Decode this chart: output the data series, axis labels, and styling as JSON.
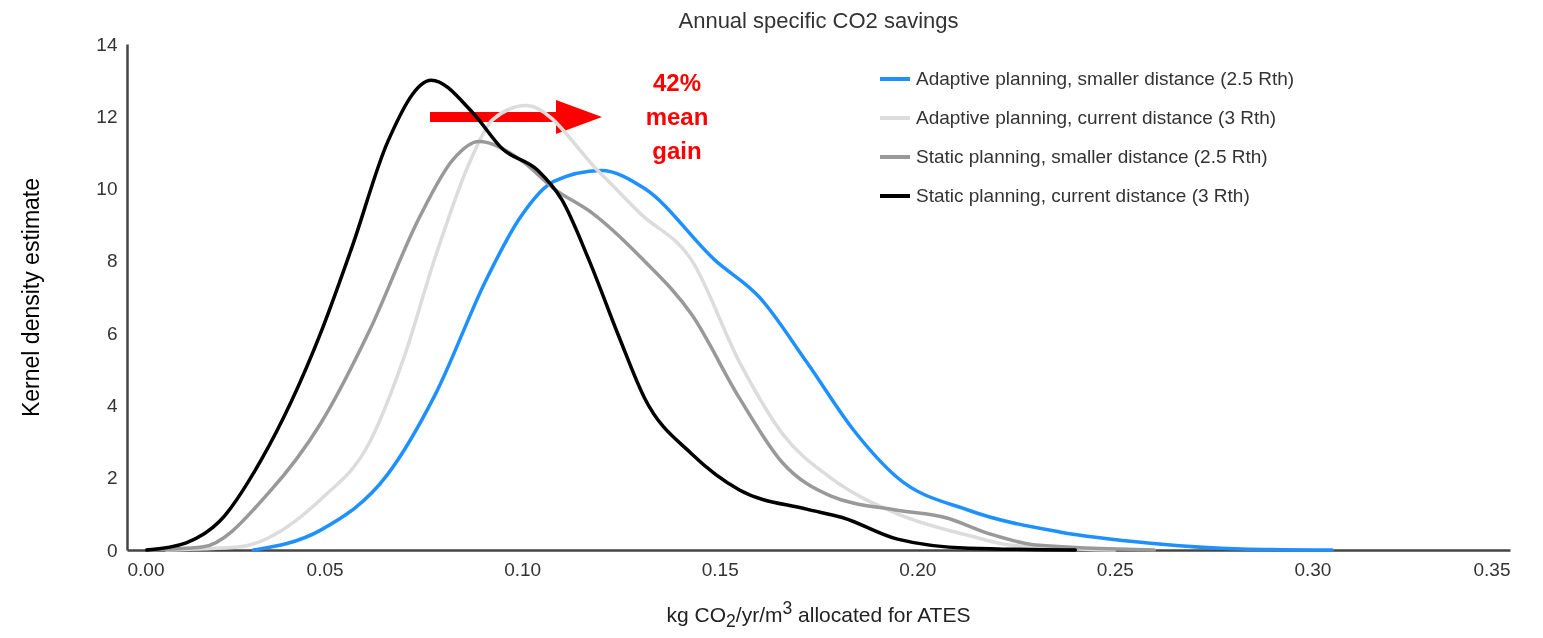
{
  "chart_data": {
    "type": "line",
    "title": "Annual specific CO2 savings",
    "xlabel": "kg CO$_{2}$/yr/m$^{3}$  allocated for ATES",
    "ylabel": "Kernel density estimate",
    "xlim": [
      0,
      0.35
    ],
    "ylim": [
      0,
      14
    ],
    "xticks": [
      {
        "value": 0,
        "label": "0.00"
      },
      {
        "value": 0.05,
        "label": "0.05"
      },
      {
        "value": 0.1,
        "label": "0.10"
      },
      {
        "value": 0.15,
        "label": "0.15"
      },
      {
        "value": 0.2,
        "label": "0.20"
      },
      {
        "value": 0.25,
        "label": "0.25"
      },
      {
        "value": 0.3,
        "label": "0.30"
      },
      {
        "value": 0.35,
        "label": "0.35"
      }
    ],
    "yticks": [
      0,
      2,
      4,
      6,
      8,
      10,
      12,
      14
    ],
    "grid": false,
    "legend": "top right",
    "line_style": "solid",
    "marker": "none",
    "annotations": [
      "42%\nmean\ngain"
    ],
    "series": [
      {
        "name": "Adaptive planning, smaller distance (2.5 Rth)",
        "color": "#1e90ff",
        "x": [
          0.032,
          0.049,
          0.066,
          0.078,
          0.091,
          0.0995,
          0.108,
          0.12,
          0.131,
          0.149,
          0.16,
          0.172,
          0.184,
          0.195,
          0.213,
          0.236,
          0.259,
          0.282,
          0.305
        ],
        "values": [
          0,
          0.55,
          2.1,
          4.3,
          7.5,
          9.2,
          10.2,
          10.5,
          10.0,
          8.0,
          7.0,
          5.2,
          3.3,
          2.0,
          1.1,
          0.5,
          0.19,
          0.03,
          0
        ]
      },
      {
        "name": "Adaptive planning, current distance (3 Rth)",
        "color": "#dcdcdc",
        "x": [
          0.01,
          0.028,
          0.049,
          0.0615,
          0.07,
          0.078,
          0.087,
          0.0925,
          0.101,
          0.12,
          0.13,
          0.143,
          0.155,
          0.166,
          0.178,
          0.195,
          0.213,
          0.224,
          0.25
        ],
        "values": [
          0,
          0.08,
          1.4,
          3.0,
          5.3,
          8.1,
          10.8,
          11.9,
          12.3,
          10.4,
          9.3,
          8.0,
          5.2,
          3.2,
          2.0,
          1.0,
          0.4,
          0.13,
          0
        ]
      },
      {
        "name": "Static planning, smaller distance (2.5 Rth)",
        "color": "#999999",
        "x": [
          0.005,
          0.019,
          0.036,
          0.049,
          0.0615,
          0.074,
          0.0825,
          0.089,
          0.0995,
          0.108,
          0.118,
          0.13,
          0.143,
          0.155,
          0.166,
          0.178,
          0.195,
          0.207,
          0.2185,
          0.23,
          0.26
        ],
        "values": [
          0,
          0.08,
          1.6,
          3.5,
          6.1,
          9.2,
          10.8,
          11.3,
          10.8,
          10.0,
          9.3,
          8.1,
          6.5,
          4.2,
          2.4,
          1.5,
          1.1,
          0.9,
          0.44,
          0.14,
          0
        ]
      },
      {
        "name": "Static planning, current distance (3 Rth)",
        "color": "#000000",
        "x": [
          0.005,
          0.015,
          0.0235,
          0.034,
          0.049,
          0.057,
          0.066,
          0.077,
          0.0875,
          0.095,
          0.104,
          0.11,
          0.117,
          0.1245,
          0.131,
          0.143,
          0.155,
          0.172,
          0.181,
          0.195,
          0.213,
          0.24
        ],
        "values": [
          0,
          0.2,
          0.8,
          2.5,
          6.0,
          8.4,
          11.3,
          13.0,
          12.1,
          11.1,
          10.5,
          9.7,
          8.0,
          5.9,
          4.2,
          2.65,
          1.66,
          1.13,
          0.9,
          0.3,
          0.05,
          0
        ]
      }
    ]
  }
}
